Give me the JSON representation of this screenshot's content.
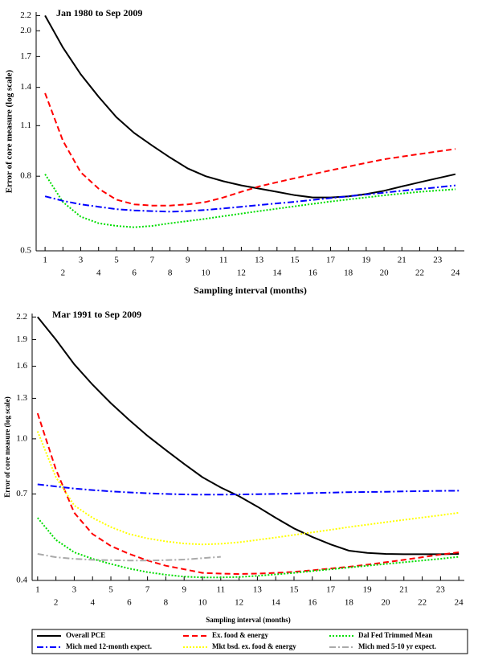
{
  "chart_data": [
    {
      "type": "line",
      "title": "Jan 1980 to Sep 2009",
      "x_label": "Sampling interval (months)",
      "y_label": "Error of core measure (log scale)",
      "y_scale": "log",
      "xlim": [
        0.5,
        24.5
      ],
      "ylim": [
        0.5,
        2.25
      ],
      "xticks": [
        1,
        2,
        3,
        4,
        5,
        6,
        7,
        8,
        9,
        10,
        11,
        12,
        13,
        14,
        15,
        16,
        17,
        18,
        19,
        20,
        21,
        22,
        23,
        24
      ],
      "yticks": [
        0.5,
        0.8,
        1.1,
        1.4,
        1.7,
        {
          "value": 2.0,
          "label": "2.0"
        },
        2.2
      ],
      "x": [
        1,
        2,
        3,
        4,
        5,
        6,
        7,
        8,
        9,
        10,
        11,
        12,
        13,
        14,
        15,
        16,
        17,
        18,
        19,
        20,
        21,
        22,
        23,
        24
      ],
      "series": [
        {
          "color": "#000000",
          "style": "solid",
          "values": [
            2.2,
            1.8,
            1.52,
            1.32,
            1.16,
            1.05,
            0.97,
            0.9,
            0.84,
            0.8,
            0.775,
            0.755,
            0.74,
            0.725,
            0.71,
            0.7,
            0.7,
            0.705,
            0.715,
            0.73,
            0.75,
            0.77,
            0.79,
            0.81
          ]
        },
        {
          "color": "#ff0000",
          "style": "dashed",
          "values": [
            1.35,
            1.0,
            0.82,
            0.74,
            0.69,
            0.67,
            0.665,
            0.665,
            0.67,
            0.68,
            0.7,
            0.725,
            0.75,
            0.77,
            0.79,
            0.81,
            0.83,
            0.85,
            0.87,
            0.89,
            0.905,
            0.92,
            0.935,
            0.95
          ]
        },
        {
          "color": "#00dd00",
          "style": "dotted",
          "values": [
            0.81,
            0.68,
            0.62,
            0.595,
            0.585,
            0.58,
            0.585,
            0.595,
            0.603,
            0.612,
            0.622,
            0.632,
            0.642,
            0.652,
            0.662,
            0.672,
            0.682,
            0.691,
            0.7,
            0.709,
            0.717,
            0.725,
            0.731,
            0.737
          ]
        },
        {
          "color": "#0000ff",
          "style": "dashdot",
          "values": [
            0.705,
            0.685,
            0.67,
            0.66,
            0.65,
            0.645,
            0.642,
            0.64,
            0.642,
            0.647,
            0.653,
            0.66,
            0.667,
            0.674,
            0.681,
            0.689,
            0.697,
            0.705,
            0.713,
            0.721,
            0.73,
            0.738,
            0.746,
            0.755
          ]
        }
      ]
    },
    {
      "type": "line",
      "title": "Mar 1991 to Sep 2009",
      "x_label": "Sampling interval (months)",
      "y_label": "Error of core measure (log scale)",
      "y_scale": "log",
      "xlim": [
        0.7,
        24.3
      ],
      "ylim": [
        0.4,
        2.25
      ],
      "xticks": [
        1,
        2,
        3,
        4,
        5,
        6,
        7,
        8,
        9,
        10,
        11,
        12,
        13,
        14,
        15,
        16,
        17,
        18,
        19,
        20,
        21,
        22,
        23,
        24
      ],
      "yticks": [
        0.4,
        0.7,
        {
          "value": 1.0,
          "label": "1.0"
        },
        1.3,
        1.6,
        1.9,
        2.2
      ],
      "x": [
        1,
        2,
        3,
        4,
        5,
        6,
        7,
        8,
        9,
        10,
        11,
        12,
        13,
        14,
        15,
        16,
        17,
        18,
        19,
        20,
        21,
        22,
        23,
        24
      ],
      "series": [
        {
          "name": "Overall PCE",
          "color": "#000000",
          "style": "solid",
          "values": [
            2.2,
            1.9,
            1.62,
            1.42,
            1.26,
            1.13,
            1.02,
            0.93,
            0.85,
            0.78,
            0.73,
            0.69,
            0.645,
            0.6,
            0.56,
            0.53,
            0.505,
            0.485,
            0.478,
            0.475,
            0.474,
            0.474,
            0.474,
            0.475
          ]
        },
        {
          "name": "Ex. food & energy",
          "color": "#ff0000",
          "style": "dashed",
          "values": [
            1.18,
            0.82,
            0.62,
            0.54,
            0.5,
            0.475,
            0.455,
            0.44,
            0.43,
            0.42,
            0.418,
            0.417,
            0.418,
            0.42,
            0.423,
            0.427,
            0.432,
            0.437,
            0.443,
            0.45,
            0.457,
            0.465,
            0.473,
            0.48
          ]
        },
        {
          "name": "Dal Fed Trimmed Mean",
          "color": "#00dd00",
          "style": "dotted",
          "values": [
            0.6,
            0.52,
            0.48,
            0.46,
            0.445,
            0.432,
            0.422,
            0.415,
            0.41,
            0.408,
            0.408,
            0.409,
            0.412,
            0.416,
            0.42,
            0.425,
            0.43,
            0.435,
            0.44,
            0.445,
            0.45,
            0.455,
            0.46,
            0.466
          ]
        },
        {
          "name": "Mich med 12-month expect.",
          "color": "#0000ff",
          "style": "dashdot",
          "values": [
            0.745,
            0.735,
            0.725,
            0.718,
            0.712,
            0.707,
            0.703,
            0.7,
            0.698,
            0.697,
            0.697,
            0.698,
            0.699,
            0.7,
            0.702,
            0.704,
            0.706,
            0.708,
            0.709,
            0.71,
            0.712,
            0.713,
            0.714,
            0.715
          ]
        },
        {
          "name": "Mkt bsd. ex. food & energy",
          "color": "#ffff00",
          "style": "dotted",
          "values": [
            1.05,
            0.78,
            0.65,
            0.6,
            0.565,
            0.54,
            0.525,
            0.515,
            0.508,
            0.505,
            0.507,
            0.512,
            0.52,
            0.528,
            0.537,
            0.546,
            0.555,
            0.565,
            0.574,
            0.583,
            0.592,
            0.601,
            0.61,
            0.62
          ]
        },
        {
          "name": "Mich med 5-10 yr expect.",
          "color": "#aaaaaa",
          "style": "dashdot",
          "values": [
            0.475,
            0.465,
            0.46,
            0.457,
            0.456,
            0.455,
            0.455,
            0.456,
            0.458,
            0.462,
            0.466,
            null,
            null,
            null,
            null,
            null,
            null,
            null,
            null,
            null,
            null,
            null,
            null,
            null
          ]
        }
      ]
    }
  ]
}
